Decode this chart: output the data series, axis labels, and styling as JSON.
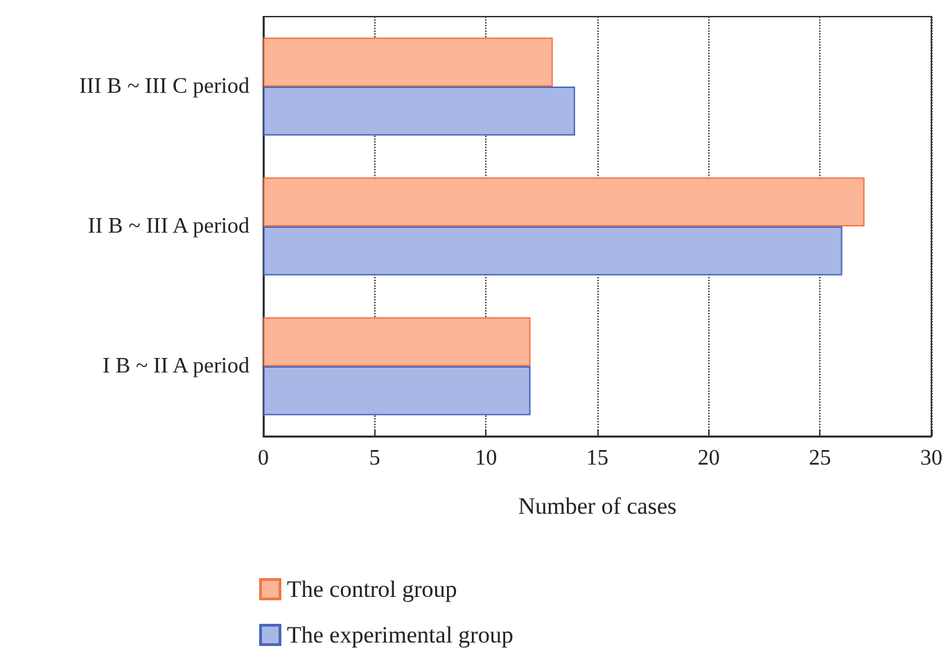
{
  "chart_data": {
    "type": "bar",
    "orientation": "horizontal",
    "xlabel": "Number of cases",
    "categories": [
      "III B ~ III C period",
      "II B ~ III A period",
      "I B ~ II A period"
    ],
    "series": [
      {
        "name": "The control group",
        "color": "#fcb597",
        "values": [
          13,
          27,
          12
        ]
      },
      {
        "name": "The experimental group",
        "color": "#a8b8e6",
        "values": [
          14,
          26,
          12
        ]
      }
    ],
    "xlim": [
      0,
      30
    ],
    "xticks": [
      0,
      5,
      10,
      15,
      20,
      25,
      30
    ],
    "grid": "x",
    "legend": "bottom"
  }
}
